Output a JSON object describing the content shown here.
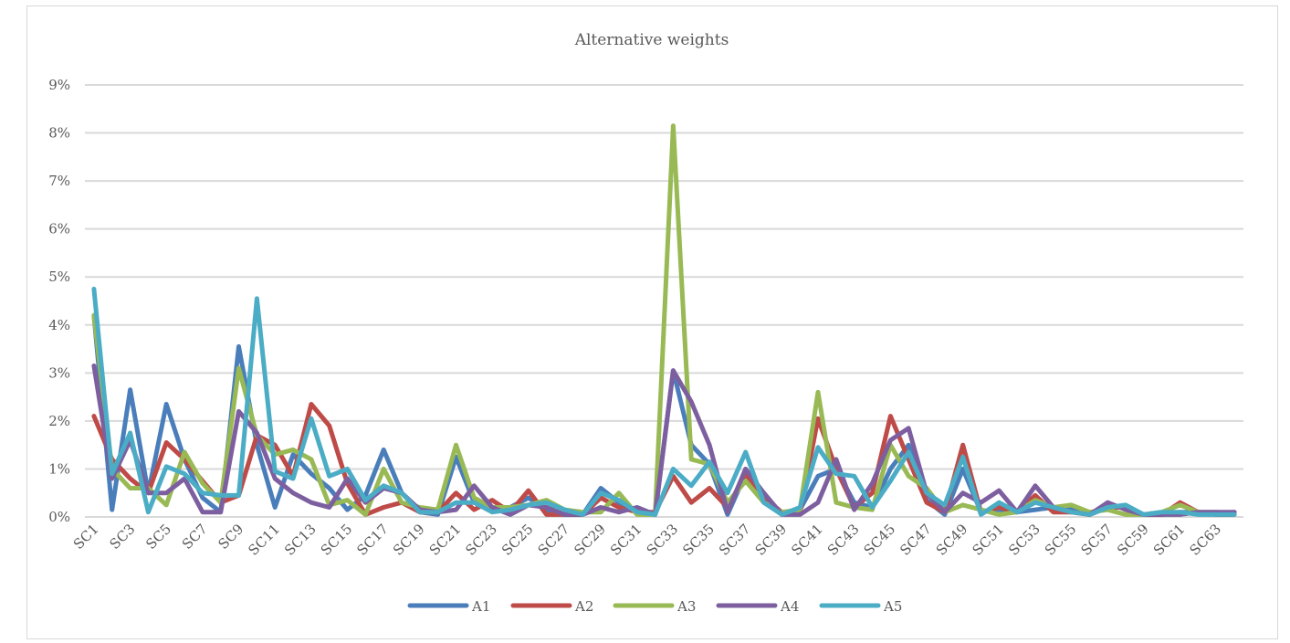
{
  "chart_data": {
    "type": "line",
    "title": "Alternative weights",
    "xlabel": "",
    "ylabel": "",
    "ylim": [
      0,
      9
    ],
    "y_ticks": [
      "0%",
      "1%",
      "2%",
      "3%",
      "4%",
      "5%",
      "6%",
      "7%",
      "8%",
      "9%"
    ],
    "grid": true,
    "legend_position": "bottom",
    "categories": [
      "SC1",
      "SC2",
      "SC3",
      "SC4",
      "SC5",
      "SC6",
      "SC7",
      "SC8",
      "SC9",
      "SC10",
      "SC11",
      "SC12",
      "SC13",
      "SC14",
      "SC15",
      "SC16",
      "SC17",
      "SC18",
      "SC19",
      "SC20",
      "SC21",
      "SC22",
      "SC23",
      "SC24",
      "SC25",
      "SC26",
      "SC27",
      "SC28",
      "SC29",
      "SC30",
      "SC31",
      "SC32",
      "SC33",
      "SC34",
      "SC35",
      "SC36",
      "SC37",
      "SC38",
      "SC39",
      "SC40",
      "SC41",
      "SC42",
      "SC43",
      "SC44",
      "SC45",
      "SC46",
      "SC47",
      "SC48",
      "SC49",
      "SC50",
      "SC51",
      "SC52",
      "SC53",
      "SC54",
      "SC55",
      "SC56",
      "SC57",
      "SC58",
      "SC59",
      "SC60",
      "SC61",
      "SC62",
      "SC63",
      "SC64"
    ],
    "x_tick_labels": [
      "SC1",
      "SC3",
      "SC5",
      "SC7",
      "SC9",
      "SC11",
      "SC13",
      "SC15",
      "SC17",
      "SC19",
      "SC21",
      "SC23",
      "SC25",
      "SC27",
      "SC29",
      "SC31",
      "SC33",
      "SC35",
      "SC37",
      "SC39",
      "SC41",
      "SC43",
      "SC45",
      "SC47",
      "SC49",
      "SC51",
      "SC53",
      "SC55",
      "SC57",
      "SC59",
      "SC61",
      "SC63"
    ],
    "series": [
      {
        "name": "A1",
        "color": "#4a7ebb",
        "values": [
          4.2,
          0.15,
          2.65,
          0.5,
          2.35,
          1.2,
          0.4,
          0.1,
          3.55,
          1.5,
          0.2,
          1.3,
          0.9,
          0.6,
          0.15,
          0.45,
          1.4,
          0.5,
          0.1,
          0.05,
          1.25,
          0.3,
          0.15,
          0.2,
          0.4,
          0.15,
          0.05,
          0.05,
          0.6,
          0.3,
          0.1,
          0.05,
          3.05,
          1.5,
          1.1,
          0.05,
          0.9,
          0.5,
          0.05,
          0.15,
          0.85,
          1.0,
          0.3,
          0.2,
          1.0,
          1.5,
          0.35,
          0.05,
          1.0,
          0.1,
          0.15,
          0.1,
          0.15,
          0.2,
          0.15,
          0.05,
          0.2,
          0.2,
          0.05,
          0.05,
          0.1,
          0.1,
          0.05,
          0.1
        ]
      },
      {
        "name": "A2",
        "color": "#be4b48",
        "values": [
          2.1,
          1.2,
          0.8,
          0.5,
          1.55,
          1.2,
          0.75,
          0.3,
          0.45,
          1.7,
          1.5,
          0.85,
          2.35,
          1.9,
          0.7,
          0.05,
          0.2,
          0.3,
          0.1,
          0.1,
          0.5,
          0.15,
          0.35,
          0.1,
          0.55,
          0.05,
          0.05,
          0.05,
          0.4,
          0.2,
          0.1,
          0.1,
          0.85,
          0.3,
          0.6,
          0.2,
          0.9,
          0.4,
          0.1,
          0.1,
          2.05,
          1.0,
          0.2,
          0.5,
          2.1,
          1.2,
          0.3,
          0.1,
          1.5,
          0.1,
          0.2,
          0.1,
          0.45,
          0.1,
          0.1,
          0.05,
          0.2,
          0.2,
          0.05,
          0.05,
          0.3,
          0.1,
          0.05,
          0.05
        ]
      },
      {
        "name": "A3",
        "color": "#98b954",
        "values": [
          4.2,
          1.0,
          0.6,
          0.6,
          0.25,
          1.35,
          0.7,
          0.3,
          3.1,
          1.7,
          1.3,
          1.4,
          1.2,
          0.25,
          0.35,
          0.05,
          1.0,
          0.3,
          0.2,
          0.15,
          1.5,
          0.4,
          0.2,
          0.2,
          0.25,
          0.35,
          0.15,
          0.1,
          0.1,
          0.5,
          0.05,
          0.05,
          8.15,
          1.2,
          1.1,
          0.3,
          0.75,
          0.3,
          0.1,
          0.15,
          2.6,
          0.3,
          0.2,
          0.15,
          1.5,
          0.85,
          0.6,
          0.1,
          0.25,
          0.15,
          0.05,
          0.1,
          0.35,
          0.2,
          0.25,
          0.1,
          0.15,
          0.05,
          0.05,
          0.1,
          0.25,
          0.1,
          0.1,
          0.05
        ]
      },
      {
        "name": "A4",
        "color": "#7d5fa0",
        "values": [
          3.15,
          0.8,
          1.6,
          0.5,
          0.5,
          0.8,
          0.1,
          0.1,
          2.2,
          1.75,
          0.8,
          0.5,
          0.3,
          0.2,
          0.8,
          0.3,
          0.6,
          0.5,
          0.15,
          0.1,
          0.15,
          0.65,
          0.2,
          0.05,
          0.25,
          0.2,
          0.05,
          0.05,
          0.2,
          0.1,
          0.2,
          0.05,
          3.05,
          2.4,
          1.5,
          0.1,
          1.0,
          0.5,
          0.05,
          0.05,
          0.3,
          1.2,
          0.15,
          0.7,
          1.6,
          1.85,
          0.5,
          0.1,
          0.5,
          0.3,
          0.55,
          0.1,
          0.65,
          0.2,
          0.1,
          0.05,
          0.3,
          0.15,
          0.05,
          0.05,
          0.05,
          0.1,
          0.1,
          0.1
        ]
      },
      {
        "name": "A5",
        "color": "#4bacc6",
        "values": [
          4.75,
          0.9,
          1.75,
          0.1,
          1.05,
          0.9,
          0.5,
          0.45,
          0.45,
          4.55,
          0.95,
          0.8,
          2.05,
          0.85,
          1.0,
          0.35,
          0.65,
          0.5,
          0.1,
          0.1,
          0.3,
          0.3,
          0.1,
          0.15,
          0.25,
          0.3,
          0.15,
          0.05,
          0.5,
          0.35,
          0.1,
          0.05,
          1.0,
          0.65,
          1.15,
          0.5,
          1.35,
          0.3,
          0.05,
          0.2,
          1.45,
          0.9,
          0.85,
          0.2,
          0.75,
          1.35,
          0.5,
          0.25,
          1.25,
          0.05,
          0.3,
          0.1,
          0.3,
          0.2,
          0.1,
          0.05,
          0.2,
          0.25,
          0.05,
          0.1,
          0.1,
          0.05,
          0.05,
          0.05
        ]
      }
    ]
  }
}
